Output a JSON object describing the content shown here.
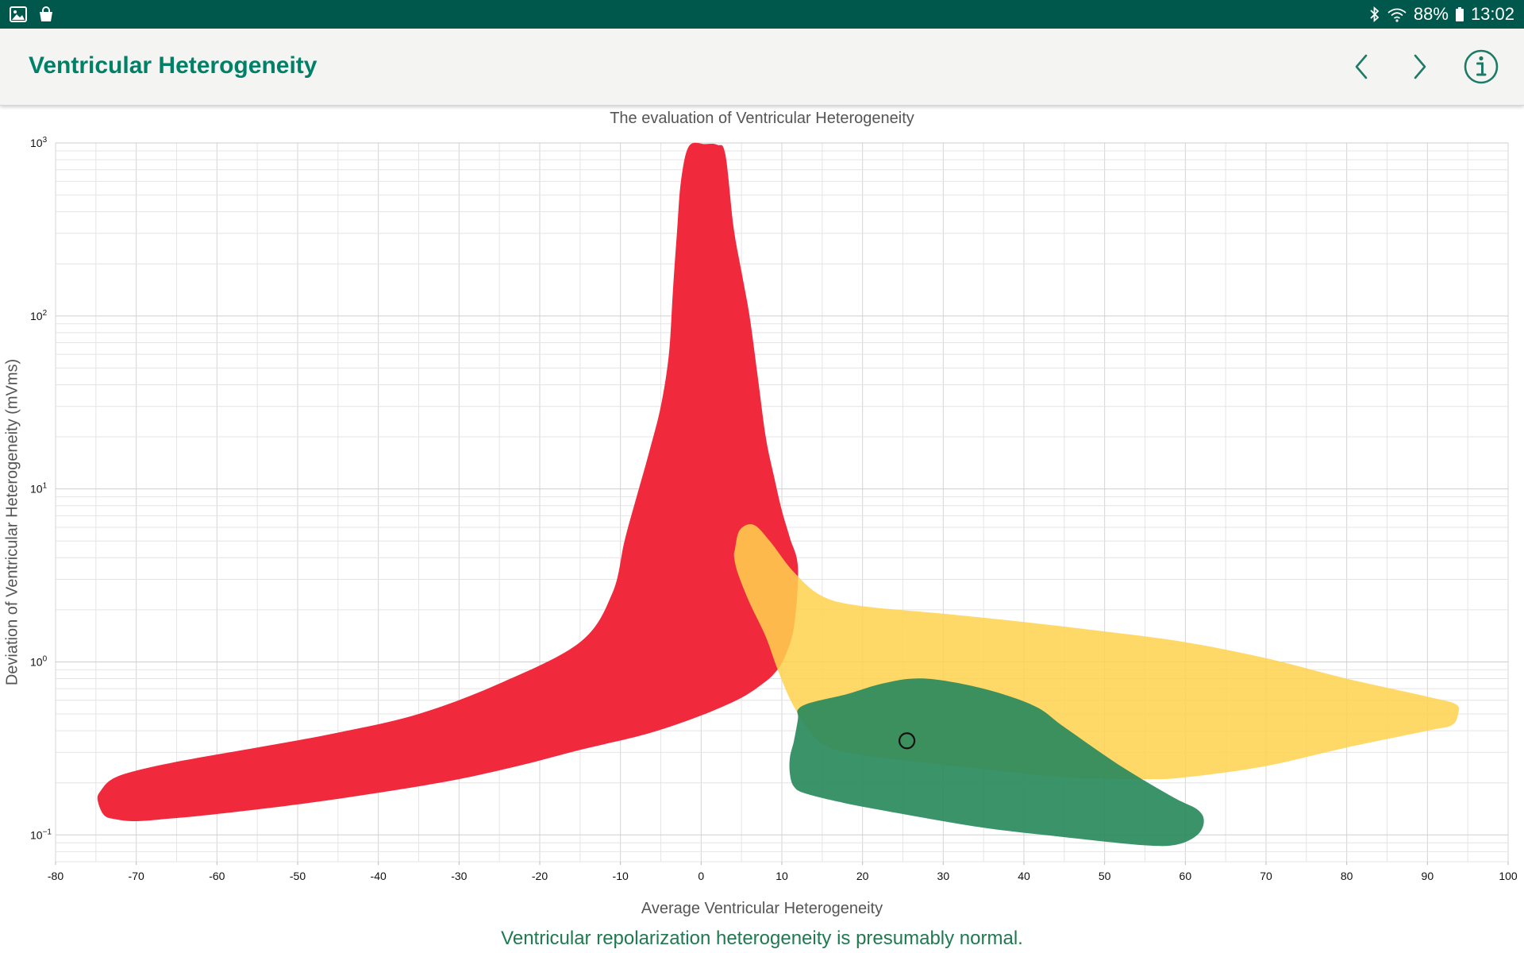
{
  "status_bar": {
    "left_icons": [
      "gallery-icon",
      "shopping-bag-icon"
    ],
    "right_icons": [
      "bluetooth-icon",
      "wifi-icon",
      "battery-icon"
    ],
    "battery": "88%",
    "time": "13:02",
    "background": "#00574B"
  },
  "app_bar": {
    "title": "Ventricular Heterogeneity",
    "title_color": "#008066",
    "actions": [
      "chevron-left-icon",
      "chevron-right-icon",
      "info-icon"
    ]
  },
  "chart_data": {
    "type": "scatter",
    "title": "The evaluation of Ventricular Heterogeneity",
    "xlabel": "Average Ventricular Heterogeneity",
    "ylabel": "Deviation of Ventricular Heterogeneity (mVms)",
    "xlim": [
      -80,
      100
    ],
    "ylim": [
      0.07,
      1000
    ],
    "y_scale": "log",
    "x_ticks": [
      "-80",
      "-70",
      "-60",
      "-50",
      "-40",
      "-30",
      "-20",
      "-10",
      "0",
      "10",
      "20",
      "30",
      "40",
      "50",
      "60",
      "70",
      "80",
      "90",
      "100"
    ],
    "y_ticks": [
      {
        "base": "10",
        "exp": "3"
      },
      {
        "base": "10",
        "exp": "2"
      },
      {
        "base": "10",
        "exp": "1"
      },
      {
        "base": "10",
        "exp": "0"
      },
      {
        "base": "10",
        "exp": "−1"
      }
    ],
    "grid": true,
    "regions": [
      {
        "color": "#F02A3C",
        "points": [
          [
            -1.5,
            960
          ],
          [
            0.5,
            985
          ],
          [
            2,
            975
          ],
          [
            3,
            860
          ],
          [
            4,
            330
          ],
          [
            5,
            180
          ],
          [
            6,
            100
          ],
          [
            7,
            45
          ],
          [
            8,
            20
          ],
          [
            9,
            12
          ],
          [
            10,
            7.5
          ],
          [
            11,
            5.2
          ],
          [
            12,
            3.5
          ],
          [
            11.5,
            1.6
          ],
          [
            10.3,
            1.05
          ],
          [
            9,
            0.85
          ],
          [
            7.5,
            0.74
          ],
          [
            5.5,
            0.64
          ],
          [
            3,
            0.56
          ],
          [
            0,
            0.49
          ],
          [
            -4,
            0.42
          ],
          [
            -8,
            0.37
          ],
          [
            -15,
            0.31
          ],
          [
            -22,
            0.255
          ],
          [
            -30,
            0.21
          ],
          [
            -40,
            0.175
          ],
          [
            -50,
            0.15
          ],
          [
            -60,
            0.132
          ],
          [
            -66,
            0.124
          ],
          [
            -70,
            0.12
          ],
          [
            -72.5,
            0.123
          ],
          [
            -74,
            0.13
          ],
          [
            -74.8,
            0.16
          ],
          [
            -74.4,
            0.18
          ],
          [
            -73,
            0.21
          ],
          [
            -70,
            0.235
          ],
          [
            -64,
            0.27
          ],
          [
            -55,
            0.32
          ],
          [
            -45,
            0.39
          ],
          [
            -35,
            0.5
          ],
          [
            -25,
            0.75
          ],
          [
            -15,
            1.3
          ],
          [
            -11,
            2.5
          ],
          [
            -9.5,
            5
          ],
          [
            -8,
            9
          ],
          [
            -6.5,
            16
          ],
          [
            -5,
            30
          ],
          [
            -4,
            60
          ],
          [
            -3.5,
            140
          ],
          [
            -3,
            300
          ],
          [
            -2.5,
            600
          ]
        ]
      },
      {
        "color": "#FFD24D",
        "points": [
          [
            4.2,
            4.5
          ],
          [
            4.8,
            5.8
          ],
          [
            6.5,
            6.2
          ],
          [
            8.5,
            5
          ],
          [
            11.5,
            3.3
          ],
          [
            15,
            2.4
          ],
          [
            20,
            2.1
          ],
          [
            30,
            1.9
          ],
          [
            40,
            1.7
          ],
          [
            50,
            1.5
          ],
          [
            60,
            1.3
          ],
          [
            70,
            1.05
          ],
          [
            80,
            0.8
          ],
          [
            90,
            0.63
          ],
          [
            93.5,
            0.57
          ],
          [
            93.8,
            0.5
          ],
          [
            93,
            0.43
          ],
          [
            90,
            0.4
          ],
          [
            80,
            0.32
          ],
          [
            70,
            0.25
          ],
          [
            60,
            0.215
          ],
          [
            55,
            0.21
          ],
          [
            45,
            0.215
          ],
          [
            35,
            0.24
          ],
          [
            25,
            0.27
          ],
          [
            18,
            0.3
          ],
          [
            14.5,
            0.35
          ],
          [
            11.5,
            0.55
          ],
          [
            9.5,
            0.9
          ],
          [
            8,
            1.4
          ],
          [
            6,
            2.2
          ],
          [
            4.6,
            3.2
          ],
          [
            4.1,
            4
          ]
        ]
      },
      {
        "color": "#2A8A5C",
        "points": [
          [
            12,
            0.53
          ],
          [
            13.5,
            0.58
          ],
          [
            18,
            0.65
          ],
          [
            22,
            0.74
          ],
          [
            26,
            0.8
          ],
          [
            30,
            0.78
          ],
          [
            36,
            0.68
          ],
          [
            41.5,
            0.55
          ],
          [
            45,
            0.42
          ],
          [
            52,
            0.25
          ],
          [
            58.5,
            0.165
          ],
          [
            61.5,
            0.14
          ],
          [
            62.3,
            0.12
          ],
          [
            61.5,
            0.1
          ],
          [
            59,
            0.088
          ],
          [
            55,
            0.087
          ],
          [
            45,
            0.097
          ],
          [
            35,
            0.11
          ],
          [
            25,
            0.132
          ],
          [
            18,
            0.152
          ],
          [
            13,
            0.173
          ],
          [
            11.5,
            0.19
          ],
          [
            11,
            0.225
          ],
          [
            11,
            0.28
          ],
          [
            11.5,
            0.35
          ],
          [
            12,
            0.47
          ]
        ]
      }
    ],
    "points": [
      {
        "x": 25.5,
        "y": 0.35
      }
    ]
  },
  "verdict": "Ventricular repolarization heterogeneity is presumably normal.",
  "verdict_color": "#1F7A4F"
}
